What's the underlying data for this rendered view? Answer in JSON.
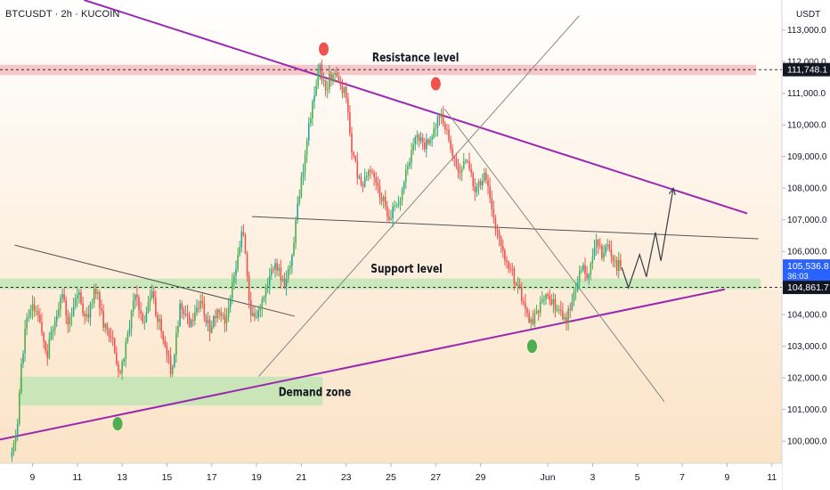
{
  "header": {
    "symbol_line": "BTCUSDT · 2h · KUCOIN",
    "currency": "USDT"
  },
  "chart_data": {
    "type": "candlestick",
    "title": "BTCUSDT · 2h · KUCOIN",
    "xlabel": "",
    "ylabel": "",
    "ylim": [
      99300,
      113950
    ],
    "y_ticks": [
      100000,
      101000,
      102000,
      103000,
      104000,
      105000,
      106000,
      107000,
      108000,
      109000,
      110000,
      111000,
      112000,
      113000
    ],
    "y_tick_labels": [
      "100,000.0",
      "101,000.0",
      "102,000.0",
      "103,000.0",
      "104,000.0",
      "105,000.0",
      "106,000.0",
      "107,000.0",
      "108,000.0",
      "109,000.0",
      "110,000.0",
      "111,000.0",
      "112,000.0",
      "113,000.0"
    ],
    "x_ticks": [
      {
        "day": 9,
        "label": "9"
      },
      {
        "day": 11,
        "label": "11"
      },
      {
        "day": 13,
        "label": "13"
      },
      {
        "day": 15,
        "label": "15"
      },
      {
        "day": 17,
        "label": "17"
      },
      {
        "day": 19,
        "label": "19"
      },
      {
        "day": 21,
        "label": "21"
      },
      {
        "day": 23,
        "label": "23"
      },
      {
        "day": 25,
        "label": "25"
      },
      {
        "day": 27,
        "label": "27"
      },
      {
        "day": 29,
        "label": "29"
      },
      {
        "day": 32,
        "label": "Jun"
      },
      {
        "day": 34,
        "label": "3"
      },
      {
        "day": 36,
        "label": "5"
      },
      {
        "day": 38,
        "label": "7"
      },
      {
        "day": 40,
        "label": "9"
      },
      {
        "day": 42,
        "label": "11"
      }
    ],
    "x_day_range": [
      7.55,
      42.45
    ],
    "grid": false,
    "legend": "none",
    "price_path": [
      [
        8.0,
        99500
      ],
      [
        8.3,
        100100
      ],
      [
        8.5,
        102500
      ],
      [
        8.7,
        103600
      ],
      [
        9.0,
        104400
      ],
      [
        9.3,
        103900
      ],
      [
        9.6,
        102600
      ],
      [
        10.0,
        103900
      ],
      [
        10.3,
        104700
      ],
      [
        10.6,
        103700
      ],
      [
        11.0,
        104800
      ],
      [
        11.4,
        103800
      ],
      [
        11.8,
        104900
      ],
      [
        12.2,
        103600
      ],
      [
        12.6,
        103100
      ],
      [
        12.9,
        101900
      ],
      [
        13.2,
        103200
      ],
      [
        13.6,
        104800
      ],
      [
        13.9,
        103700
      ],
      [
        14.3,
        104700
      ],
      [
        14.8,
        103300
      ],
      [
        15.2,
        102200
      ],
      [
        15.6,
        104300
      ],
      [
        16.0,
        103700
      ],
      [
        16.5,
        104500
      ],
      [
        16.9,
        103500
      ],
      [
        17.3,
        104200
      ],
      [
        17.6,
        103800
      ],
      [
        18.0,
        105200
      ],
      [
        18.4,
        106700
      ],
      [
        18.7,
        104200
      ],
      [
        19.0,
        103800
      ],
      [
        19.4,
        104800
      ],
      [
        19.8,
        105700
      ],
      [
        20.2,
        104900
      ],
      [
        20.6,
        105900
      ],
      [
        20.9,
        107800
      ],
      [
        21.2,
        109200
      ],
      [
        21.5,
        110700
      ],
      [
        21.8,
        111800
      ],
      [
        22.1,
        111200
      ],
      [
        22.4,
        111700
      ],
      [
        22.7,
        111300
      ],
      [
        23.0,
        110900
      ],
      [
        23.3,
        109000
      ],
      [
        23.7,
        108000
      ],
      [
        24.1,
        108600
      ],
      [
        24.5,
        107900
      ],
      [
        24.9,
        107100
      ],
      [
        25.3,
        107500
      ],
      [
        25.7,
        108500
      ],
      [
        26.1,
        109700
      ],
      [
        26.5,
        109300
      ],
      [
        26.9,
        109900
      ],
      [
        27.2,
        110400
      ],
      [
        27.6,
        109500
      ],
      [
        28.0,
        108600
      ],
      [
        28.4,
        109000
      ],
      [
        28.8,
        107800
      ],
      [
        29.2,
        108600
      ],
      [
        29.6,
        107000
      ],
      [
        30.0,
        105900
      ],
      [
        30.4,
        105300
      ],
      [
        30.8,
        104600
      ],
      [
        31.2,
        103600
      ],
      [
        31.6,
        104200
      ],
      [
        32.0,
        104700
      ],
      [
        32.4,
        104200
      ],
      [
        32.8,
        103800
      ],
      [
        33.2,
        104700
      ],
      [
        33.5,
        105600
      ],
      [
        33.8,
        105000
      ],
      [
        34.1,
        106300
      ],
      [
        34.4,
        105900
      ],
      [
        34.7,
        106200
      ],
      [
        35.0,
        105600
      ],
      [
        35.3,
        105500
      ]
    ],
    "projection_path": [
      [
        35.3,
        105500
      ],
      [
        35.6,
        104850
      ],
      [
        36.1,
        105900
      ],
      [
        36.4,
        105200
      ],
      [
        36.8,
        106600
      ],
      [
        37.05,
        105700
      ],
      [
        37.6,
        108000
      ]
    ],
    "annotations": [
      {
        "text": "Resistance level",
        "day": 26.1,
        "price": 112000
      },
      {
        "text": "Support level",
        "day": 25.7,
        "price": 105330
      },
      {
        "text": "Demand zone",
        "day": 21.6,
        "price": 101420
      }
    ],
    "resistance_zone": {
      "from_day": 7.55,
      "to_day": 41.3,
      "top": 111900,
      "bottom": 111580
    },
    "support_zone": {
      "from_day": 7.55,
      "to_day": 41.5,
      "top": 105140,
      "bottom": 104800
    },
    "demand_zone": {
      "from_day": 8.4,
      "to_day": 21.95,
      "top": 102040,
      "bottom": 101130
    },
    "level_lines": [
      {
        "price": 111748.1,
        "label": "111,748.1"
      },
      {
        "price": 104861.7,
        "label": "104,861.7"
      }
    ],
    "current_price": {
      "price": 105536.8,
      "label": "105,536.8",
      "countdown": "36:03"
    },
    "trend_lines": [
      {
        "name": "upper-triangle-line",
        "color": "#9c27b0",
        "points": [
          [
            11.3,
            113950
          ],
          [
            40.9,
            107200
          ]
        ]
      },
      {
        "name": "lower-triangle-line",
        "color": "#9c27b0",
        "points": [
          [
            7.55,
            100050
          ],
          [
            39.9,
            104800
          ]
        ]
      },
      {
        "name": "falling-wedge-top",
        "color": "#555555",
        "points": [
          [
            8.2,
            106200
          ],
          [
            20.7,
            103950
          ]
        ]
      },
      {
        "name": "horizontal-neckline",
        "color": "#555555",
        "points": [
          [
            18.8,
            107100
          ],
          [
            41.4,
            106400
          ]
        ]
      },
      {
        "name": "rising-diagonal",
        "color": "#888888",
        "points": [
          [
            19.1,
            102050
          ],
          [
            33.4,
            113450
          ]
        ]
      },
      {
        "name": "falling-diagonal",
        "color": "#888888",
        "points": [
          [
            27.4,
            110500
          ],
          [
            37.2,
            101250
          ]
        ]
      }
    ],
    "markers": [
      {
        "name": "red-marker-top-left",
        "day": 22.0,
        "price": 112400,
        "color": "#ef5350"
      },
      {
        "name": "red-marker-top-right",
        "day": 27.0,
        "price": 111300,
        "color": "#ef5350"
      },
      {
        "name": "green-marker-bottom-left",
        "day": 12.8,
        "price": 100550,
        "color": "#4caf50"
      },
      {
        "name": "green-marker-bottom-right",
        "day": 31.3,
        "price": 103000,
        "color": "#4caf50"
      }
    ],
    "colors": {
      "up": "#26a69a",
      "up_main": "#4caf50",
      "down": "#ef5350",
      "background_top": "#ffffff",
      "background_bottom": "#fbe3c6",
      "resistance_zone": "#f4b4b8",
      "support_zone": "#b9e6b0",
      "demand_zone": "#b9e6b0"
    }
  }
}
